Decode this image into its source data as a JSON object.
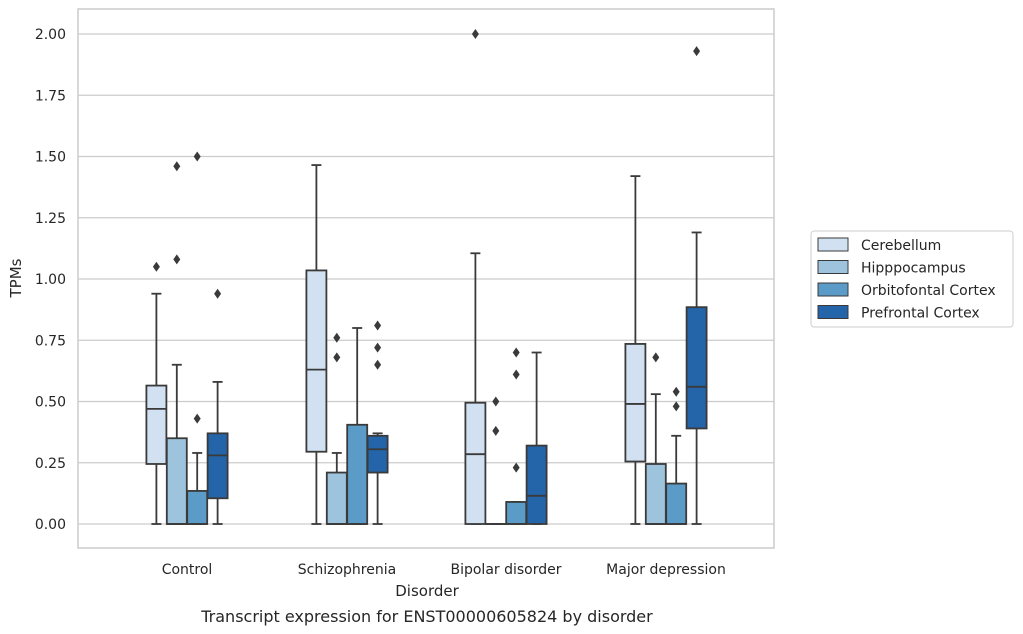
{
  "chart_data": {
    "type": "box",
    "caption": "Transcript expression for ENST00000605824 by disorder",
    "xlabel": "Disorder",
    "ylabel": "TPMs",
    "ylim": [
      -0.1,
      2.1
    ],
    "yticks": [
      0.0,
      0.25,
      0.5,
      0.75,
      1.0,
      1.25,
      1.5,
      1.75,
      2.0
    ],
    "ytick_labels": [
      "0.00",
      "0.25",
      "0.50",
      "0.75",
      "1.00",
      "1.25",
      "1.50",
      "1.75",
      "2.00"
    ],
    "grid": "horizontal",
    "legend_position": "right",
    "categories": [
      "Control",
      "Schizophrenia",
      "Bipolar disorder",
      "Major depression"
    ],
    "series": [
      {
        "name": "Cerebellum",
        "color": "#d1e1f1",
        "boxes": [
          {
            "whisker_low": 0.0,
            "q1": 0.245,
            "median": 0.47,
            "q3": 0.565,
            "whisker_high": 0.94,
            "outliers": [
              1.05
            ]
          },
          {
            "whisker_low": 0.0,
            "q1": 0.295,
            "median": 0.63,
            "q3": 1.035,
            "whisker_high": 1.465,
            "outliers": []
          },
          {
            "whisker_low": 0.0,
            "q1": 0.0,
            "median": 0.285,
            "q3": 0.495,
            "whisker_high": 1.105,
            "outliers": [
              2.0
            ]
          },
          {
            "whisker_low": 0.0,
            "q1": 0.255,
            "median": 0.49,
            "q3": 0.735,
            "whisker_high": 1.42,
            "outliers": []
          }
        ]
      },
      {
        "name": "Hipppocampus",
        "color": "#9dc3dd",
        "boxes": [
          {
            "whisker_low": 0.0,
            "q1": 0.0,
            "median": 0.0,
            "q3": 0.35,
            "whisker_high": 0.65,
            "outliers": [
              1.08,
              1.46
            ]
          },
          {
            "whisker_low": 0.0,
            "q1": 0.0,
            "median": 0.0,
            "q3": 0.21,
            "whisker_high": 0.29,
            "outliers": [
              0.68,
              0.76
            ]
          },
          {
            "whisker_low": 0.0,
            "q1": 0.0,
            "median": 0.0,
            "q3": 0.0,
            "whisker_high": 0.0,
            "outliers": [
              0.38,
              0.5
            ]
          },
          {
            "whisker_low": 0.0,
            "q1": 0.0,
            "median": 0.0,
            "q3": 0.245,
            "whisker_high": 0.53,
            "outliers": [
              0.68
            ]
          }
        ]
      },
      {
        "name": "Orbitofontal Cortex",
        "color": "#5a9bc8",
        "boxes": [
          {
            "whisker_low": 0.0,
            "q1": 0.0,
            "median": 0.0,
            "q3": 0.135,
            "whisker_high": 0.29,
            "outliers": [
              0.43,
              1.5
            ]
          },
          {
            "whisker_low": 0.0,
            "q1": 0.0,
            "median": 0.0,
            "q3": 0.405,
            "whisker_high": 0.8,
            "outliers": []
          },
          {
            "whisker_low": 0.0,
            "q1": 0.0,
            "median": 0.0,
            "q3": 0.09,
            "whisker_high": 0.09,
            "outliers": [
              0.23,
              0.61,
              0.7
            ]
          },
          {
            "whisker_low": 0.0,
            "q1": 0.0,
            "median": 0.0,
            "q3": 0.165,
            "whisker_high": 0.36,
            "outliers": [
              0.48,
              0.54
            ]
          }
        ]
      },
      {
        "name": "Prefrontal Cortex",
        "color": "#2464a8",
        "boxes": [
          {
            "whisker_low": 0.0,
            "q1": 0.105,
            "median": 0.28,
            "q3": 0.37,
            "whisker_high": 0.58,
            "outliers": [
              0.94
            ]
          },
          {
            "whisker_low": 0.0,
            "q1": 0.21,
            "median": 0.305,
            "q3": 0.36,
            "whisker_high": 0.37,
            "outliers": [
              0.65,
              0.72,
              0.81
            ]
          },
          {
            "whisker_low": 0.0,
            "q1": 0.0,
            "median": 0.115,
            "q3": 0.32,
            "whisker_high": 0.7,
            "outliers": []
          },
          {
            "whisker_low": 0.0,
            "q1": 0.39,
            "median": 0.56,
            "q3": 0.885,
            "whisker_high": 1.19,
            "outliers": [
              1.93
            ]
          }
        ]
      }
    ]
  }
}
